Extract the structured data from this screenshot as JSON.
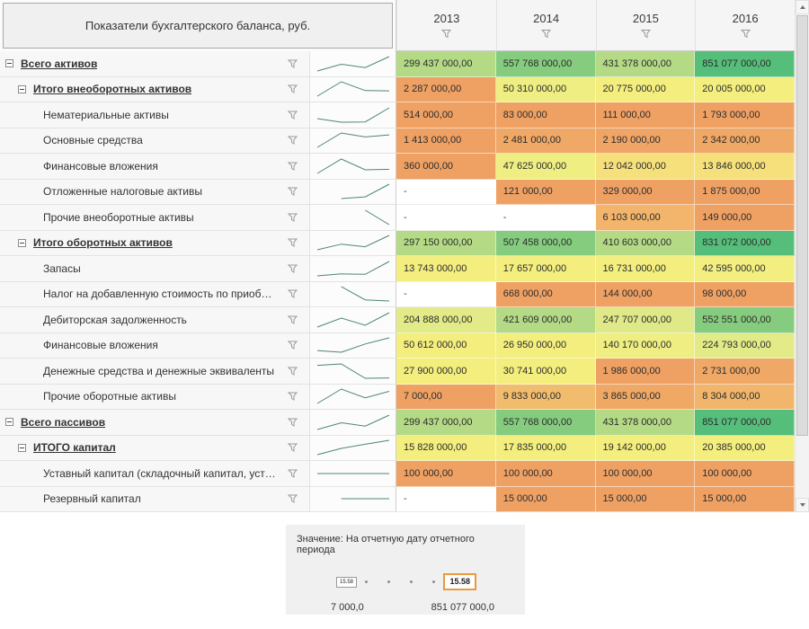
{
  "header": {
    "title": "Показатели бухгалтерского баланса, руб.",
    "columns": [
      "2013",
      "2014",
      "2015",
      "2016"
    ]
  },
  "heatmap_palette": {
    "low": "#efa164",
    "mid": "#f3ee7e",
    "high": "#55be7a"
  },
  "sparkline_color": "#4e8577",
  "rows": [
    {
      "label": "Всего активов",
      "level": 0,
      "group": true,
      "values": [
        "299 437 000,00",
        "557 768 000,00",
        "431 378 000,00",
        "851 077 000,00"
      ],
      "colors": [
        "#b4da86",
        "#85cc7e",
        "#b4da86",
        "#55be7a"
      ],
      "spark": [
        299437000,
        557768000,
        431378000,
        851077000
      ]
    },
    {
      "label": "Итого внеоборотных активов",
      "level": 1,
      "group": true,
      "values": [
        "2 287 000,00",
        "50 310 000,00",
        "20 775 000,00",
        "20 005 000,00"
      ],
      "colors": [
        "#efa164",
        "#eeee83",
        "#f3ee7e",
        "#f3ee7e"
      ],
      "spark": [
        2287000,
        50310000,
        20775000,
        20005000
      ]
    },
    {
      "label": "Нематериальные активы",
      "level": 2,
      "group": false,
      "values": [
        "514 000,00",
        "83 000,00",
        "111 000,00",
        "1 793 000,00"
      ],
      "colors": [
        "#efa164",
        "#efa164",
        "#efa164",
        "#efa164"
      ],
      "spark": [
        514000,
        83000,
        111000,
        1793000
      ]
    },
    {
      "label": "Основные средства",
      "level": 2,
      "group": false,
      "values": [
        "1 413 000,00",
        "2 481 000,00",
        "2 190 000,00",
        "2 342 000,00"
      ],
      "colors": [
        "#efa164",
        "#f0a866",
        "#efa565",
        "#f0a866"
      ],
      "spark": [
        1413000,
        2481000,
        2190000,
        2342000
      ]
    },
    {
      "label": "Финансовые вложения",
      "level": 2,
      "group": false,
      "values": [
        "360 000,00",
        "47 625 000,00",
        "12 042 000,00",
        "13 846 000,00"
      ],
      "colors": [
        "#efa164",
        "#eeee83",
        "#f5e07b",
        "#f5e07b"
      ],
      "spark": [
        360000,
        47625000,
        12042000,
        13846000
      ]
    },
    {
      "label": "Отложенные налоговые активы",
      "level": 2,
      "group": false,
      "values": [
        "-",
        "121 000,00",
        "329 000,00",
        "1 875 000,00"
      ],
      "colors": [
        null,
        "#efa164",
        "#efa164",
        "#efa164"
      ],
      "spark": [
        null,
        121000,
        329000,
        1875000
      ]
    },
    {
      "label": "Прочие внеоборотные активы",
      "level": 2,
      "group": false,
      "values": [
        "-",
        "-",
        "6 103 000,00",
        "149 000,00"
      ],
      "colors": [
        null,
        null,
        "#f2b56b",
        "#efa164"
      ],
      "spark": [
        null,
        null,
        6103000,
        149000
      ]
    },
    {
      "label": "Итого оборотных активов",
      "level": 1,
      "group": true,
      "values": [
        "297 150 000,00",
        "507 458 000,00",
        "410 603 000,00",
        "831 072 000,00"
      ],
      "colors": [
        "#b4da86",
        "#85cc7e",
        "#b4da86",
        "#55be7a"
      ],
      "spark": [
        297150000,
        507458000,
        410603000,
        831072000
      ]
    },
    {
      "label": "Запасы",
      "level": 2,
      "group": false,
      "values": [
        "13 743 000,00",
        "17 657 000,00",
        "16 731 000,00",
        "42 595 000,00"
      ],
      "colors": [
        "#f3ee7e",
        "#f3ee7e",
        "#f3ee7e",
        "#f2ee80"
      ],
      "spark": [
        13743000,
        17657000,
        16731000,
        42595000
      ]
    },
    {
      "label": "Налог на добавленную стоимость по приобретен...",
      "level": 2,
      "group": false,
      "values": [
        "-",
        "668 000,00",
        "144 000,00",
        "98 000,00"
      ],
      "colors": [
        null,
        "#efa164",
        "#efa164",
        "#efa164"
      ],
      "spark": [
        null,
        668000,
        144000,
        98000
      ]
    },
    {
      "label": "Дебиторская задолженность",
      "level": 2,
      "group": false,
      "values": [
        "204 888 000,00",
        "421 609 000,00",
        "247 707 000,00",
        "552 551 000,00"
      ],
      "colors": [
        "#e2eb87",
        "#b4da86",
        "#dfe987",
        "#85cc7e"
      ],
      "spark": [
        204888000,
        421609000,
        247707000,
        552551000
      ]
    },
    {
      "label": "Финансовые вложения",
      "level": 2,
      "group": false,
      "values": [
        "50 612 000,00",
        "26 950 000,00",
        "140 170 000,00",
        "224 793 000,00"
      ],
      "colors": [
        "#f3ee7e",
        "#f3ee7e",
        "#eeee82",
        "#e2eb87"
      ],
      "spark": [
        50612000,
        26950000,
        140170000,
        224793000
      ]
    },
    {
      "label": "Денежные средства и денежные эквиваленты",
      "level": 2,
      "group": false,
      "values": [
        "27 900 000,00",
        "30 741 000,00",
        "1 986 000,00",
        "2 731 000,00"
      ],
      "colors": [
        "#f3ee7e",
        "#f3ee7e",
        "#efa164",
        "#f0a866"
      ],
      "spark": [
        27900000,
        30741000,
        1986000,
        2731000
      ]
    },
    {
      "label": "Прочие оборотные активы",
      "level": 2,
      "group": false,
      "values": [
        "7 000,00",
        "9 833 000,00",
        "3 865 000,00",
        "8 304 000,00"
      ],
      "colors": [
        "#efa164",
        "#f2bc6e",
        "#f0a865",
        "#f1b56b"
      ],
      "spark": [
        7000,
        9833000,
        3865000,
        8304000
      ]
    },
    {
      "label": "Всего пассивов",
      "level": 0,
      "group": true,
      "values": [
        "299 437 000,00",
        "557 768 000,00",
        "431 378 000,00",
        "851 077 000,00"
      ],
      "colors": [
        "#b4da86",
        "#85cc7e",
        "#b4da86",
        "#55be7a"
      ],
      "spark": [
        299437000,
        557768000,
        431378000,
        851077000
      ]
    },
    {
      "label": "ИТОГО капитал",
      "level": 1,
      "group": true,
      "values": [
        "15 828 000,00",
        "17 835 000,00",
        "19 142 000,00",
        "20 385 000,00"
      ],
      "colors": [
        "#f3ee7e",
        "#f3ee7e",
        "#f3ee7e",
        "#f3ee7e"
      ],
      "spark": [
        15828000,
        17835000,
        19142000,
        20385000
      ]
    },
    {
      "label": "Уставный капитал (складочный капитал, уставны...",
      "level": 2,
      "group": false,
      "values": [
        "100 000,00",
        "100 000,00",
        "100 000,00",
        "100 000,00"
      ],
      "colors": [
        "#efa164",
        "#efa164",
        "#efa164",
        "#efa164"
      ],
      "spark": [
        100000,
        100000,
        100000,
        100000
      ]
    },
    {
      "label": "Резервный капитал",
      "level": 2,
      "group": false,
      "values": [
        "-",
        "15 000,00",
        "15 000,00",
        "15 000,00"
      ],
      "colors": [
        null,
        "#efa164",
        "#efa164",
        "#efa164"
      ],
      "spark": [
        null,
        15000,
        15000,
        15000
      ]
    }
  ],
  "legend": {
    "title": "Значение: На отчетную дату отчетного периода",
    "min_size_label": "15.58",
    "max_size_label": "15.58",
    "min_value": "7 000,0",
    "max_value": "851 077 000,0"
  }
}
